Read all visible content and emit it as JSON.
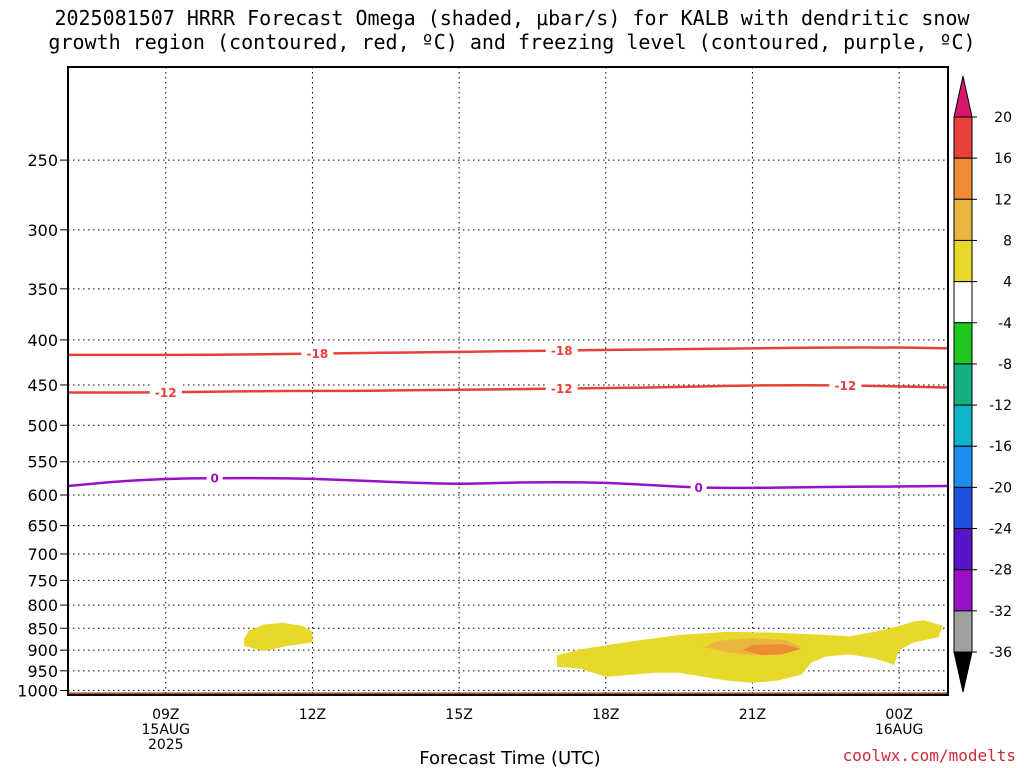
{
  "title": {
    "line1": "2025081507 HRRR Forecast Omega (shaded, μbar/s) for KALB with dendritic snow",
    "line2": "growth region (contoured, red, ºC) and freezing level (contoured, purple, ºC)"
  },
  "chart_data": {
    "type": "contour",
    "xlabel": "Forecast Time (UTC)",
    "ylabel": "",
    "x_range_hours": [
      7.0,
      25.0
    ],
    "y_range_hpa": [
      1012,
      196
    ],
    "y_scale": "log",
    "y_ticks": [
      250,
      300,
      350,
      400,
      450,
      500,
      550,
      600,
      650,
      700,
      750,
      800,
      850,
      900,
      950,
      1000
    ],
    "x_ticks": [
      {
        "hour": 9,
        "lines": [
          "09Z",
          "15AUG",
          "2025"
        ]
      },
      {
        "hour": 12,
        "lines": [
          "12Z"
        ]
      },
      {
        "hour": 15,
        "lines": [
          "15Z"
        ]
      },
      {
        "hour": 18,
        "lines": [
          "18Z"
        ]
      },
      {
        "hour": 21,
        "lines": [
          "21Z"
        ]
      },
      {
        "hour": 24,
        "lines": [
          "00Z",
          "16AUG"
        ]
      }
    ],
    "grid": "dotted",
    "surface_color": "#a0522d",
    "contours": [
      {
        "label": "-18",
        "color": "#e8403a",
        "points": [
          [
            7.0,
            416
          ],
          [
            8.5,
            416
          ],
          [
            10.0,
            416
          ],
          [
            11.5,
            415
          ],
          [
            13.0,
            414
          ],
          [
            14.5,
            413
          ],
          [
            16.0,
            412
          ],
          [
            17.5,
            411
          ],
          [
            19.0,
            410
          ],
          [
            21.0,
            409
          ],
          [
            22.5,
            408
          ],
          [
            24.0,
            408
          ],
          [
            25.0,
            409
          ]
        ],
        "label_hours": [
          12.1,
          17.1
        ]
      },
      {
        "label": "-12",
        "color": "#e8403a",
        "points": [
          [
            7.0,
            459
          ],
          [
            8.5,
            459
          ],
          [
            10.0,
            458
          ],
          [
            11.5,
            457
          ],
          [
            13.0,
            457
          ],
          [
            14.5,
            456
          ],
          [
            16.0,
            455
          ],
          [
            17.5,
            454
          ],
          [
            19.0,
            453
          ],
          [
            20.5,
            451
          ],
          [
            22.0,
            450
          ],
          [
            23.5,
            451
          ],
          [
            25.0,
            453
          ]
        ],
        "label_hours": [
          9.0,
          17.1,
          22.9
        ]
      },
      {
        "label": "0",
        "color": "#9a10c8",
        "points": [
          [
            7.0,
            586
          ],
          [
            8.0,
            579
          ],
          [
            9.0,
            575
          ],
          [
            10.0,
            574
          ],
          [
            11.0,
            574
          ],
          [
            12.0,
            575
          ],
          [
            13.0,
            578
          ],
          [
            14.0,
            581
          ],
          [
            15.0,
            583
          ],
          [
            16.0,
            581
          ],
          [
            17.0,
            580
          ],
          [
            18.0,
            581
          ],
          [
            19.0,
            585
          ],
          [
            20.0,
            589
          ],
          [
            21.0,
            589
          ],
          [
            22.0,
            588
          ],
          [
            23.0,
            587
          ],
          [
            24.0,
            587
          ],
          [
            25.0,
            586
          ]
        ],
        "label_hours": [
          10.0,
          19.9
        ]
      }
    ],
    "shaded_regions": [
      {
        "level": "4 to 8",
        "color": "#e8d82a",
        "points": [
          [
            10.6,
            874
          ],
          [
            10.7,
            855
          ],
          [
            11.0,
            842
          ],
          [
            11.4,
            838
          ],
          [
            11.8,
            845
          ],
          [
            12.0,
            858
          ],
          [
            12.0,
            882
          ],
          [
            11.5,
            890
          ],
          [
            11.0,
            902
          ],
          [
            10.6,
            890
          ]
        ]
      },
      {
        "level": "4 to 8",
        "color": "#e8d82a",
        "points": [
          [
            17.0,
            935
          ],
          [
            17.0,
            912
          ],
          [
            17.5,
            898
          ],
          [
            18.5,
            880
          ],
          [
            19.5,
            865
          ],
          [
            20.5,
            858
          ],
          [
            21.5,
            860
          ],
          [
            22.5,
            865
          ],
          [
            23.0,
            868
          ],
          [
            23.5,
            858
          ],
          [
            24.0,
            845
          ],
          [
            24.3,
            835
          ],
          [
            24.5,
            832
          ],
          [
            24.9,
            845
          ],
          [
            24.8,
            870
          ],
          [
            24.3,
            882
          ],
          [
            24.0,
            900
          ],
          [
            23.9,
            935
          ],
          [
            23.5,
            920
          ],
          [
            23.0,
            910
          ],
          [
            22.5,
            915
          ],
          [
            22.2,
            930
          ],
          [
            22.0,
            960
          ],
          [
            21.5,
            975
          ],
          [
            21.0,
            980
          ],
          [
            20.5,
            975
          ],
          [
            19.5,
            955
          ],
          [
            19.0,
            955
          ],
          [
            18.5,
            960
          ],
          [
            18.0,
            965
          ],
          [
            17.5,
            945
          ],
          [
            17.0,
            940
          ]
        ]
      },
      {
        "level": "8 to 12",
        "color": "#e8b640",
        "points": [
          [
            20.0,
            893
          ],
          [
            20.3,
            878
          ],
          [
            21.0,
            872
          ],
          [
            21.7,
            877
          ],
          [
            22.0,
            893
          ],
          [
            21.5,
            908
          ],
          [
            21.0,
            912
          ],
          [
            20.5,
            905
          ]
        ]
      },
      {
        "level": "12 to 16",
        "color": "#ef8a35",
        "points": [
          [
            20.8,
            900
          ],
          [
            21.0,
            888
          ],
          [
            21.6,
            886
          ],
          [
            22.0,
            897
          ],
          [
            21.6,
            910
          ],
          [
            21.2,
            912
          ]
        ]
      }
    ],
    "colorbar": {
      "tick_labels": [
        "20",
        "16",
        "12",
        "8",
        "4",
        "-4",
        "-8",
        "-12",
        "-16",
        "-20",
        "-24",
        "-28",
        "-32",
        "-36"
      ],
      "colors": [
        "#e8403a",
        "#ef8a35",
        "#e8b640",
        "#e8d82a",
        "#ffffff",
        "#1ec81e",
        "#14b282",
        "#10b4c8",
        "#1e8cf0",
        "#1e50dc",
        "#5a14c8",
        "#9a10c8",
        "#a0a0a0"
      ],
      "top_arrow_color": "#d8166e",
      "bottom_arrow_color": "#000000"
    }
  },
  "footer": {
    "credit": "coolwx.com/modelts"
  }
}
